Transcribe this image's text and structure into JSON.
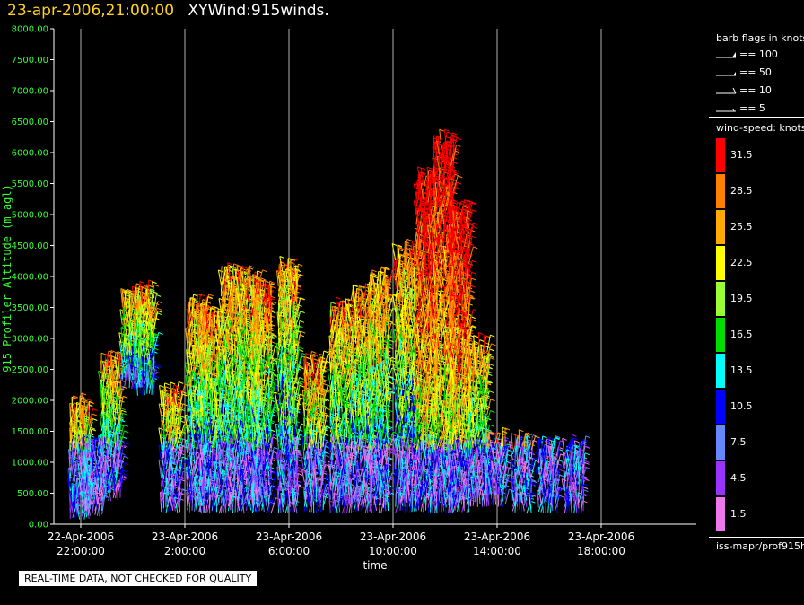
{
  "title": {
    "timestamp": "23-apr-2006,21:00:00",
    "name": "XYWind:915winds."
  },
  "chart_data": {
    "type": "scatter",
    "ylabel": "915 Profiler Altitude (m agl)",
    "xlabel": "time",
    "ylim": [
      0,
      8000
    ],
    "yticks": [
      "0.00",
      "500.00",
      "1000.00",
      "1500.00",
      "2000.00",
      "2500.00",
      "3000.00",
      "3500.00",
      "4000.00",
      "4500.00",
      "5000.00",
      "5500.00",
      "6000.00",
      "6500.00",
      "7000.00",
      "7500.00",
      "8000.00"
    ],
    "xticks": [
      {
        "date": "22-Apr-2006",
        "time": "22:00:00"
      },
      {
        "date": "23-Apr-2006",
        "time": "2:00:00"
      },
      {
        "date": "23-Apr-2006",
        "time": "6:00:00"
      },
      {
        "date": "23-Apr-2006",
        "time": "10:00:00"
      },
      {
        "date": "23-Apr-2006",
        "time": "14:00:00"
      },
      {
        "date": "23-Apr-2006",
        "time": "18:00:00"
      }
    ],
    "grid": "vertical lines at time ticks",
    "x_unit": "hours after 22-Apr-2006 22:00",
    "profiles": [
      {
        "x": 0.0,
        "ytop": 1800,
        "ybase": 100
      },
      {
        "x": 0.5,
        "ytop": 1200,
        "ybase": 150
      },
      {
        "x": 1.2,
        "ytop": 2600,
        "ybase": 400
      },
      {
        "x": 2.0,
        "ytop": 3600,
        "ybase": 2200
      },
      {
        "x": 2.5,
        "ytop": 3700,
        "ybase": 2100
      },
      {
        "x": 3.5,
        "ytop": 2000,
        "ybase": 200
      },
      {
        "x": 4.5,
        "ytop": 3500,
        "ybase": 200
      },
      {
        "x": 5.0,
        "ytop": 3300,
        "ybase": 200
      },
      {
        "x": 5.8,
        "ytop": 4000,
        "ybase": 200
      },
      {
        "x": 6.5,
        "ytop": 3900,
        "ybase": 200
      },
      {
        "x": 7.0,
        "ytop": 3700,
        "ybase": 200
      },
      {
        "x": 8.0,
        "ytop": 4100,
        "ybase": 200
      },
      {
        "x": 9.0,
        "ytop": 2500,
        "ybase": 200
      },
      {
        "x": 10.0,
        "ytop": 3400,
        "ybase": 200
      },
      {
        "x": 10.8,
        "ytop": 3600,
        "ybase": 200
      },
      {
        "x": 11.5,
        "ytop": 3900,
        "ybase": 200
      },
      {
        "x": 12.5,
        "ytop": 4300,
        "ybase": 200
      },
      {
        "x": 13.3,
        "ytop": 5500,
        "ybase": 200
      },
      {
        "x": 14.0,
        "ytop": 6100,
        "ybase": 200
      },
      {
        "x": 14.6,
        "ytop": 5000,
        "ybase": 200
      },
      {
        "x": 15.3,
        "ytop": 2800,
        "ybase": 300
      },
      {
        "x": 16.0,
        "ytop": 1300,
        "ybase": 300
      },
      {
        "x": 17.0,
        "ytop": 1300,
        "ybase": 200
      },
      {
        "x": 18.0,
        "ytop": 1200,
        "ybase": 200
      },
      {
        "x": 19.0,
        "ytop": 1200,
        "ybase": 200
      }
    ]
  },
  "legend": {
    "barb_title": "barb flags in knots",
    "barbs": [
      "== 100",
      "== 50",
      "== 10",
      "== 5"
    ],
    "speed_title": "wind-speed: knots",
    "speed_classes": [
      {
        "label": "31.5",
        "color": "#ff0000"
      },
      {
        "label": "28.5",
        "color": "#ff8000"
      },
      {
        "label": "25.5",
        "color": "#ffaa00"
      },
      {
        "label": "22.5",
        "color": "#ffff00"
      },
      {
        "label": "19.5",
        "color": "#99ff33"
      },
      {
        "label": "16.5",
        "color": "#00dd00"
      },
      {
        "label": "13.5",
        "color": "#00ffff"
      },
      {
        "label": "10.5",
        "color": "#0000ff"
      },
      {
        "label": "7.5",
        "color": "#6688ff"
      },
      {
        "label": "4.5",
        "color": "#9933ff"
      },
      {
        "label": "1.5",
        "color": "#ee77ee"
      }
    ],
    "source": "iss-mapr/prof915h"
  },
  "disclaimer": "REAL-TIME DATA, NOT CHECKED FOR QUALITY"
}
